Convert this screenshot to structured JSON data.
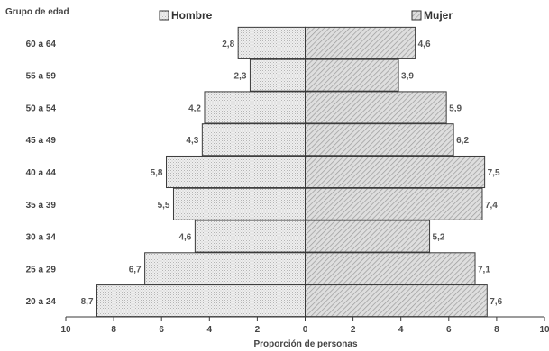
{
  "chart_data": {
    "type": "bar",
    "orientation": "horizontal",
    "layout": "population-pyramid",
    "categories": [
      "60 a 64",
      "55 a 59",
      "50 a 54",
      "45 a 49",
      "40 a 44",
      "35 a 39",
      "30 a 34",
      "25 a 29",
      "20 a 24"
    ],
    "series": [
      {
        "name": "Hombre",
        "side": "left",
        "values": [
          2.8,
          2.3,
          4.2,
          4.3,
          5.8,
          5.5,
          4.6,
          6.7,
          8.7
        ],
        "labels": [
          "2,8",
          "2,3",
          "4,2",
          "4,3",
          "5,8",
          "5,5",
          "4,6",
          "6,7",
          "8,7"
        ],
        "color": "#e6e6e6",
        "pattern": "dots"
      },
      {
        "name": "Mujer",
        "side": "right",
        "values": [
          4.6,
          3.9,
          5.9,
          6.2,
          7.5,
          7.4,
          5.2,
          7.1,
          7.6
        ],
        "labels": [
          "4,6",
          "3,9",
          "5,9",
          "6,2",
          "7,5",
          "7,4",
          "5,2",
          "7,1",
          "7,6"
        ],
        "color": "#d0d0d0",
        "pattern": "diagonal-hatch"
      }
    ],
    "y_title": "Grupo de edad",
    "xlabel": "Proporción de personas",
    "xlim": [
      -10,
      10
    ],
    "xticks": [
      -10,
      -8,
      -6,
      -4,
      -2,
      0,
      2,
      4,
      6,
      8,
      10
    ],
    "xtick_labels": [
      "10",
      "8",
      "6",
      "4",
      "2",
      "0",
      "2",
      "4",
      "6",
      "8",
      "10"
    ],
    "grid": false,
    "legend_position": "top"
  }
}
